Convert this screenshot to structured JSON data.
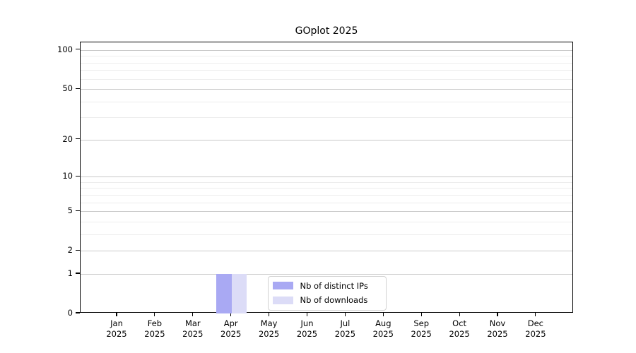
{
  "chart_data": {
    "type": "bar",
    "title": "GOplot 2025",
    "categories": [
      "Jan 2025",
      "Feb 2025",
      "Mar 2025",
      "Apr 2025",
      "May 2025",
      "Jun 2025",
      "Jul 2025",
      "Aug 2025",
      "Sep 2025",
      "Oct 2025",
      "Nov 2025",
      "Dec 2025"
    ],
    "series": [
      {
        "name": "Nb of distinct IPs",
        "color": "#a9a9f3",
        "values": [
          0,
          0,
          0,
          1,
          0,
          0,
          0,
          0,
          0,
          0,
          0,
          0
        ]
      },
      {
        "name": "Nb of downloads",
        "color": "#dcdcf7",
        "values": [
          0,
          0,
          0,
          1,
          0,
          0,
          0,
          0,
          0,
          0,
          0,
          0
        ]
      }
    ],
    "y_axis": {
      "scale": "log1p",
      "ylim": [
        0,
        114.6
      ],
      "major_ticks": [
        0,
        1,
        2,
        5,
        10,
        20,
        50,
        100
      ],
      "tick_labels": [
        "0",
        "1",
        "2",
        "5",
        "10",
        "20",
        "50",
        "100"
      ],
      "minor_ticks": [
        3,
        4,
        6,
        7,
        8,
        9,
        30,
        40,
        60,
        70,
        80,
        90
      ]
    },
    "grid": true,
    "legend_position": "lower center"
  },
  "colors": {
    "background": "#ffffff",
    "axis": "#000000",
    "major_grid": "#c9c9c9",
    "minor_grid": "#ededed",
    "legend_border": "#d2d2d2",
    "bar_distinct_ips": "#a9a9f3",
    "bar_downloads": "#dcdcf7"
  }
}
